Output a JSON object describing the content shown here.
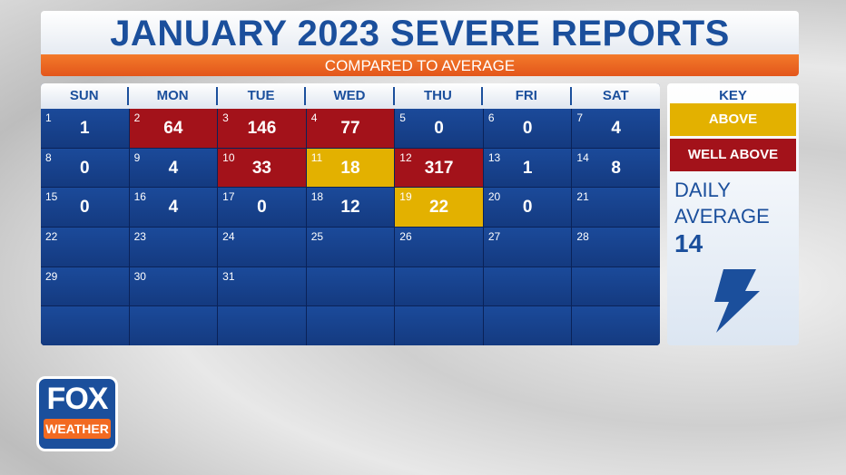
{
  "header": {
    "title": "JANUARY 2023 SEVERE REPORTS",
    "subtitle": "COMPARED TO AVERAGE"
  },
  "calendar": {
    "weekdays": [
      "SUN",
      "MON",
      "TUE",
      "WED",
      "THU",
      "FRI",
      "SAT"
    ],
    "days": [
      {
        "day": 1,
        "value": 1
      },
      {
        "day": 2,
        "value": 64,
        "color": "#a3121a"
      },
      {
        "day": 3,
        "value": 146,
        "color": "#a3121a"
      },
      {
        "day": 4,
        "value": 77,
        "color": "#a3121a"
      },
      {
        "day": 5,
        "value": 0
      },
      {
        "day": 6,
        "value": 0
      },
      {
        "day": 7,
        "value": 4
      },
      {
        "day": 8,
        "value": 0
      },
      {
        "day": 9,
        "value": 4
      },
      {
        "day": 10,
        "value": 33,
        "color": "#a3121a"
      },
      {
        "day": 11,
        "value": 18,
        "color": "#e3b100"
      },
      {
        "day": 12,
        "value": 317,
        "color": "#a3121a"
      },
      {
        "day": 13,
        "value": 1
      },
      {
        "day": 14,
        "value": 8
      },
      {
        "day": 15,
        "value": 0
      },
      {
        "day": 16,
        "value": 4
      },
      {
        "day": 17,
        "value": 0
      },
      {
        "day": 18,
        "value": 12
      },
      {
        "day": 19,
        "value": 22,
        "color": "#e3b100"
      },
      {
        "day": 20,
        "value": 0
      },
      {
        "day": 21
      },
      {
        "day": 22
      },
      {
        "day": 23
      },
      {
        "day": 24
      },
      {
        "day": 25
      },
      {
        "day": 26
      },
      {
        "day": 27
      },
      {
        "day": 28
      },
      {
        "day": 29
      },
      {
        "day": 30
      },
      {
        "day": 31
      }
    ]
  },
  "key": {
    "title": "KEY",
    "items": [
      {
        "label": "ABOVE",
        "color": "#e3b100"
      },
      {
        "label": "WELL ABOVE",
        "color": "#a3121a"
      }
    ],
    "average_label": "DAILY AVERAGE",
    "average_value": 14
  },
  "logo": {
    "top": "FOX",
    "bottom": "WEATHER"
  }
}
